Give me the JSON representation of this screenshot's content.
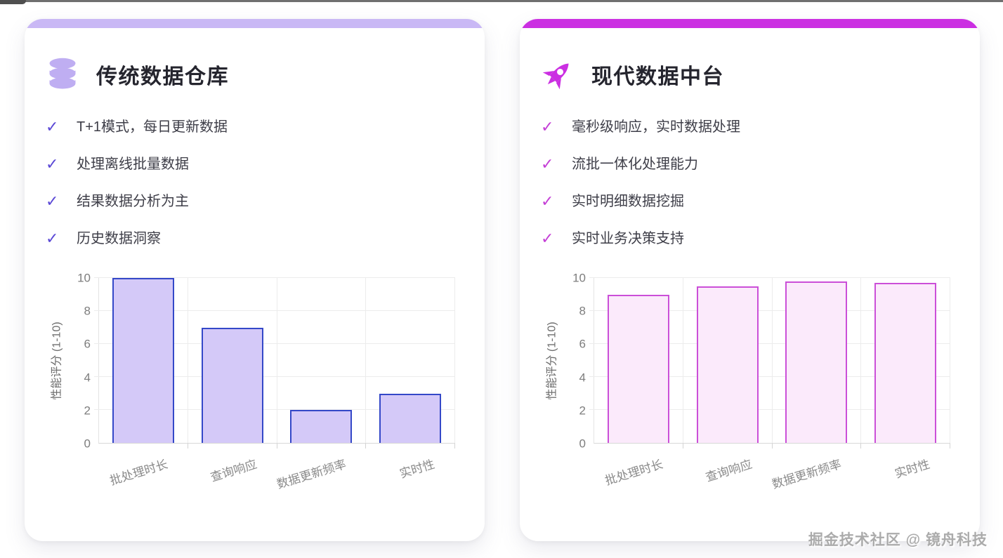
{
  "page": {
    "watermark": "掘金技术社区 @ 镜舟科技"
  },
  "icons": {
    "check": "✓"
  },
  "cards": [
    {
      "title": "传统数据仓库",
      "icon": "database-icon",
      "accent_color": "#c9b8f5",
      "icon_color": "#bfaef2",
      "check_color": "#5b49d6",
      "features": [
        "T+1模式，每日更新数据",
        "处理离线批量数据",
        "结果数据分析为主",
        "历史数据洞察"
      ]
    },
    {
      "title": "现代数据中台",
      "icon": "rocket-icon",
      "accent_color": "#cb2fe2",
      "icon_color": "#cb2fe2",
      "check_color": "#c43fd6",
      "features": [
        "毫秒级响应，实时数据处理",
        "流批一体化处理能力",
        "实时明细数据挖掘",
        "实时业务决策支持"
      ]
    }
  ],
  "chart_data": [
    {
      "type": "bar",
      "categories": [
        "批处理时长",
        "查询响应",
        "数据更新频率",
        "实时性"
      ],
      "values": [
        10,
        7,
        2,
        3
      ],
      "xlabel": "",
      "ylabel": "性能评分 (1-10)",
      "ylim": [
        0,
        10
      ],
      "y_ticks": [
        0,
        2,
        4,
        6,
        8,
        10
      ],
      "grid": true,
      "legend": false,
      "bar_fill": "#d4c9f8",
      "bar_border": "#3448c8"
    },
    {
      "type": "bar",
      "categories": [
        "批处理时长",
        "查询响应",
        "数据更新频率",
        "实时性"
      ],
      "values": [
        9,
        9.5,
        9.8,
        9.7
      ],
      "xlabel": "",
      "ylabel": "性能评分 (1-10)",
      "ylim": [
        0,
        10
      ],
      "y_ticks": [
        0,
        2,
        4,
        6,
        8,
        10
      ],
      "grid": true,
      "legend": false,
      "bar_fill": "#fbeafb",
      "bar_border": "#cb4fd8"
    }
  ]
}
